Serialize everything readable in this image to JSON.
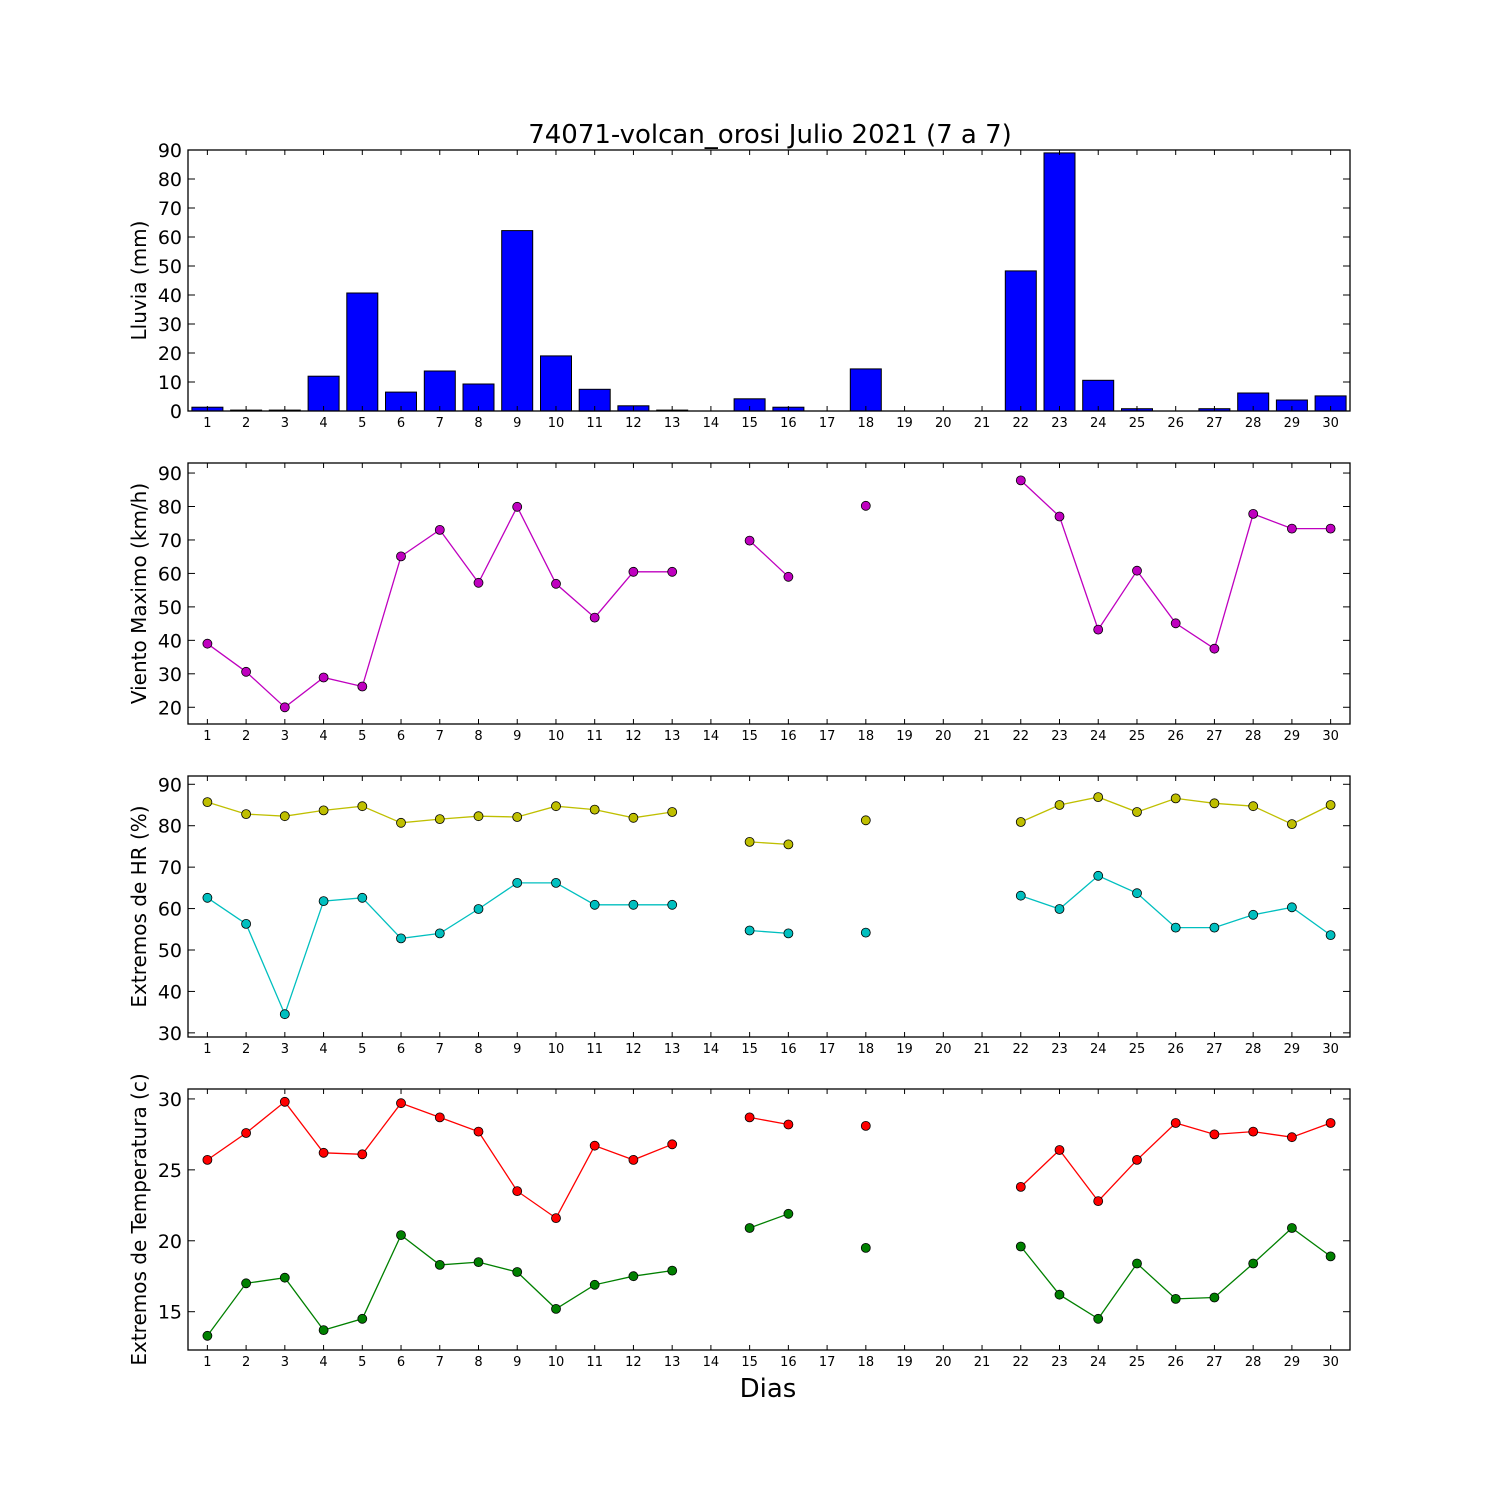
{
  "figure": {
    "title": "74071-volcan_orosi Julio 2021  (7 a 7)",
    "xlabel": "Dias"
  },
  "chart_data": [
    {
      "type": "bar",
      "ylabel": "Lluvia (mm)",
      "ylim": [
        0,
        90
      ],
      "yticks": [
        0,
        10,
        20,
        30,
        40,
        50,
        60,
        70,
        80,
        90
      ],
      "xlim": [
        0.5,
        30.5
      ],
      "categories": [
        1,
        2,
        3,
        4,
        5,
        6,
        7,
        8,
        9,
        10,
        11,
        12,
        13,
        14,
        15,
        16,
        17,
        18,
        19,
        20,
        21,
        22,
        23,
        24,
        25,
        26,
        27,
        28,
        29,
        30
      ],
      "series": [
        {
          "color": "#0000ff",
          "values": [
            1.3,
            0.3,
            0.3,
            12.0,
            40.7,
            6.5,
            13.8,
            9.3,
            62.2,
            19.0,
            7.5,
            1.8,
            0.3,
            0,
            4.2,
            1.3,
            0,
            14.5,
            0,
            0,
            0,
            48.3,
            89.0,
            10.6,
            0.8,
            0,
            0.8,
            6.2,
            3.8,
            5.2
          ]
        }
      ]
    },
    {
      "type": "line",
      "ylabel": "Viento Maximo (km/h)",
      "ylim": [
        15,
        93
      ],
      "yticks": [
        20,
        30,
        40,
        50,
        60,
        70,
        80,
        90
      ],
      "xlim": [
        0.5,
        30.5
      ],
      "x": [
        1,
        2,
        3,
        4,
        5,
        6,
        7,
        8,
        9,
        10,
        11,
        12,
        13,
        14,
        15,
        16,
        17,
        18,
        19,
        20,
        21,
        22,
        23,
        24,
        25,
        26,
        27,
        28,
        29,
        30
      ],
      "series": [
        {
          "color": "#bf00bf",
          "values": [
            39.0,
            30.6,
            20.0,
            28.9,
            26.2,
            65.1,
            73.0,
            57.2,
            79.9,
            56.9,
            46.8,
            60.5,
            60.5,
            null,
            69.8,
            59.0,
            null,
            80.2,
            null,
            null,
            null,
            87.8,
            77.0,
            43.2,
            60.8,
            45.1,
            37.5,
            77.8,
            73.4,
            73.4
          ]
        }
      ]
    },
    {
      "type": "line",
      "ylabel": "Extremos de HR (%)",
      "ylim": [
        29,
        92
      ],
      "yticks": [
        30,
        40,
        50,
        60,
        70,
        80,
        90
      ],
      "xlim": [
        0.5,
        30.5
      ],
      "x": [
        1,
        2,
        3,
        4,
        5,
        6,
        7,
        8,
        9,
        10,
        11,
        12,
        13,
        14,
        15,
        16,
        17,
        18,
        19,
        20,
        21,
        22,
        23,
        24,
        25,
        26,
        27,
        28,
        29,
        30
      ],
      "series": [
        {
          "color": "#bfbf00",
          "values": [
            85.7,
            82.8,
            82.3,
            83.7,
            84.7,
            80.7,
            81.6,
            82.3,
            82.1,
            84.7,
            83.9,
            81.9,
            83.3,
            null,
            76.1,
            75.5,
            null,
            81.3,
            null,
            null,
            null,
            80.9,
            85.0,
            86.9,
            83.3,
            86.6,
            85.4,
            84.7,
            80.4,
            85.0
          ]
        },
        {
          "color": "#00bfbf",
          "values": [
            62.6,
            56.3,
            34.5,
            61.8,
            62.6,
            52.8,
            54.0,
            59.9,
            66.2,
            66.2,
            60.9,
            60.9,
            60.9,
            null,
            54.7,
            54.0,
            null,
            54.2,
            null,
            null,
            null,
            63.1,
            59.9,
            67.9,
            63.7,
            55.4,
            55.4,
            58.5,
            60.3,
            53.6
          ]
        }
      ]
    },
    {
      "type": "line",
      "ylabel": "Extremos de Temperatura (c)",
      "ylim": [
        12.3,
        30.7
      ],
      "yticks": [
        15,
        20,
        25,
        30
      ],
      "xlim": [
        0.5,
        30.5
      ],
      "x": [
        1,
        2,
        3,
        4,
        5,
        6,
        7,
        8,
        9,
        10,
        11,
        12,
        13,
        14,
        15,
        16,
        17,
        18,
        19,
        20,
        21,
        22,
        23,
        24,
        25,
        26,
        27,
        28,
        29,
        30
      ],
      "series": [
        {
          "color": "#ff0000",
          "values": [
            25.7,
            27.6,
            29.8,
            26.2,
            26.1,
            29.7,
            28.7,
            27.7,
            23.5,
            21.6,
            26.7,
            25.7,
            26.8,
            null,
            28.7,
            28.2,
            null,
            28.1,
            null,
            null,
            null,
            23.8,
            26.4,
            22.8,
            25.7,
            28.3,
            27.5,
            27.7,
            27.3,
            28.3
          ]
        },
        {
          "color": "#008000",
          "values": [
            13.3,
            17.0,
            17.4,
            13.7,
            14.5,
            20.4,
            18.3,
            18.5,
            17.8,
            15.2,
            16.9,
            17.5,
            17.9,
            null,
            20.9,
            21.9,
            null,
            19.5,
            null,
            null,
            null,
            19.6,
            16.2,
            14.5,
            18.4,
            15.9,
            16.0,
            18.4,
            20.9,
            18.9
          ]
        }
      ]
    }
  ]
}
